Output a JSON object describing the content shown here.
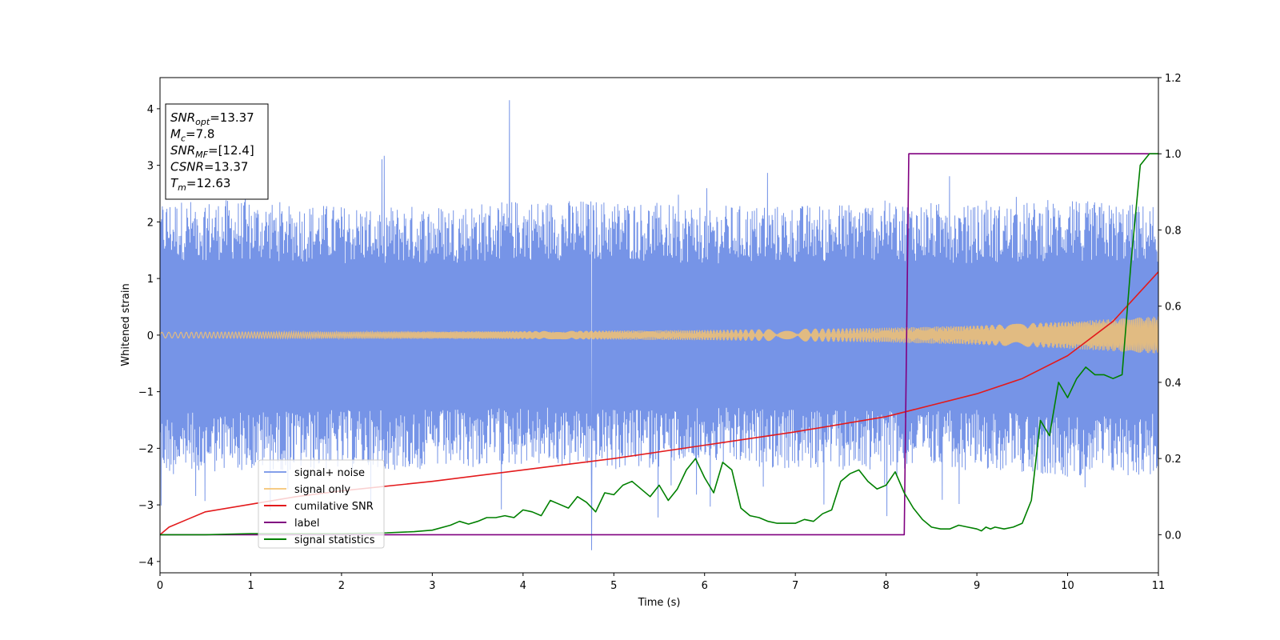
{
  "chart_data": {
    "type": "line",
    "xlabel": "Time (s)",
    "ylabel": "Whitened strain",
    "xlim": [
      0,
      11
    ],
    "ylim": [
      -4.2,
      4.55
    ],
    "ylim_right": [
      -0.1,
      1.2
    ],
    "xticks": [
      "0",
      "1",
      "2",
      "3",
      "4",
      "5",
      "6",
      "7",
      "8",
      "9",
      "10",
      "11"
    ],
    "yticks_left": [
      "−4",
      "−3",
      "−2",
      "−1",
      "0",
      "1",
      "2",
      "3",
      "4"
    ],
    "yticks_right": [
      "0.0",
      "0.2",
      "0.4",
      "0.6",
      "0.8",
      "1.0",
      "1.2"
    ],
    "grid": false,
    "legend_position": "lower-left",
    "info_box": {
      "position": "top-left",
      "lines": [
        {
          "var": "SNR",
          "sub": "opt",
          "value": "=13.37"
        },
        {
          "var": "M",
          "sub": "c",
          "value": "=7.8"
        },
        {
          "var": "SNR",
          "sub": "MF",
          "value": "=[12.4]"
        },
        {
          "var": "CSNR",
          "sub": "",
          "value": "=13.37"
        },
        {
          "var": "T",
          "sub": "m",
          "value": "=12.63"
        }
      ]
    },
    "series": [
      {
        "name": "signal+ noise",
        "axis": "left",
        "color": "#6f8ee6",
        "style": "noise-band",
        "envelope_x": [
          0,
          1,
          2,
          3,
          4,
          5,
          6,
          7,
          8,
          9,
          10,
          11
        ],
        "envelope_upper": [
          2.4,
          2.4,
          2.3,
          2.3,
          2.4,
          2.4,
          2.3,
          2.3,
          2.4,
          2.3,
          2.4,
          2.3
        ],
        "envelope_lower": [
          -2.5,
          -2.4,
          -2.4,
          -2.4,
          -2.3,
          -2.4,
          -2.3,
          -2.4,
          -2.4,
          -2.4,
          -2.5,
          -2.5
        ],
        "peak_max": 4.15,
        "peak_min": -3.8
      },
      {
        "name": "signal only",
        "axis": "left",
        "color": "#f5c270",
        "style": "chirp",
        "amplitude_x": [
          0,
          2,
          4,
          6,
          8,
          9,
          10,
          11
        ],
        "amplitude": [
          0.05,
          0.06,
          0.07,
          0.09,
          0.13,
          0.17,
          0.24,
          0.33
        ]
      },
      {
        "name": "cumilative SNR",
        "axis": "right",
        "color": "#e31a1c",
        "x": [
          0,
          0.1,
          0.3,
          0.5,
          1,
          1.5,
          2,
          3,
          4,
          5,
          6,
          7,
          8,
          8.5,
          9,
          9.5,
          10,
          10.5,
          11
        ],
        "y": [
          0.0,
          0.02,
          0.04,
          0.06,
          0.08,
          0.1,
          0.115,
          0.14,
          0.17,
          0.2,
          0.235,
          0.27,
          0.31,
          0.34,
          0.37,
          0.41,
          0.47,
          0.56,
          0.69
        ]
      },
      {
        "name": "label",
        "axis": "right",
        "color": "#800080",
        "x": [
          0,
          8.2,
          8.25,
          11
        ],
        "y": [
          0,
          0,
          1,
          1
        ]
      },
      {
        "name": "signal statistics",
        "axis": "right",
        "color": "#008000",
        "x": [
          0,
          0.5,
          1,
          1.5,
          2,
          2.5,
          2.8,
          3,
          3.2,
          3.3,
          3.4,
          3.5,
          3.6,
          3.7,
          3.8,
          3.9,
          4,
          4.1,
          4.2,
          4.3,
          4.4,
          4.5,
          4.6,
          4.7,
          4.8,
          4.9,
          5,
          5.1,
          5.2,
          5.3,
          5.4,
          5.5,
          5.6,
          5.7,
          5.8,
          5.9,
          6,
          6.1,
          6.2,
          6.3,
          6.4,
          6.5,
          6.6,
          6.7,
          6.8,
          6.9,
          7,
          7.1,
          7.2,
          7.3,
          7.4,
          7.5,
          7.6,
          7.7,
          7.8,
          7.9,
          8,
          8.1,
          8.2,
          8.3,
          8.4,
          8.5,
          8.6,
          8.7,
          8.8,
          8.9,
          9,
          9.05,
          9.1,
          9.15,
          9.2,
          9.3,
          9.4,
          9.5,
          9.6,
          9.7,
          9.8,
          9.9,
          10,
          10.1,
          10.2,
          10.3,
          10.4,
          10.5,
          10.6,
          10.7,
          10.8,
          10.9,
          11
        ],
        "y": [
          0.0,
          0.0,
          0.003,
          0.003,
          0.003,
          0.005,
          0.008,
          0.012,
          0.025,
          0.035,
          0.028,
          0.035,
          0.045,
          0.045,
          0.05,
          0.045,
          0.065,
          0.06,
          0.05,
          0.09,
          0.08,
          0.07,
          0.1,
          0.085,
          0.06,
          0.11,
          0.105,
          0.13,
          0.14,
          0.12,
          0.1,
          0.13,
          0.09,
          0.12,
          0.17,
          0.2,
          0.15,
          0.11,
          0.19,
          0.17,
          0.07,
          0.05,
          0.045,
          0.035,
          0.03,
          0.03,
          0.03,
          0.04,
          0.035,
          0.055,
          0.065,
          0.14,
          0.16,
          0.17,
          0.14,
          0.12,
          0.13,
          0.165,
          0.11,
          0.07,
          0.04,
          0.02,
          0.015,
          0.015,
          0.025,
          0.02,
          0.015,
          0.01,
          0.02,
          0.015,
          0.02,
          0.015,
          0.02,
          0.03,
          0.09,
          0.3,
          0.26,
          0.4,
          0.36,
          0.41,
          0.44,
          0.42,
          0.42,
          0.41,
          0.42,
          0.72,
          0.97,
          1.0,
          1.0
        ]
      }
    ]
  }
}
